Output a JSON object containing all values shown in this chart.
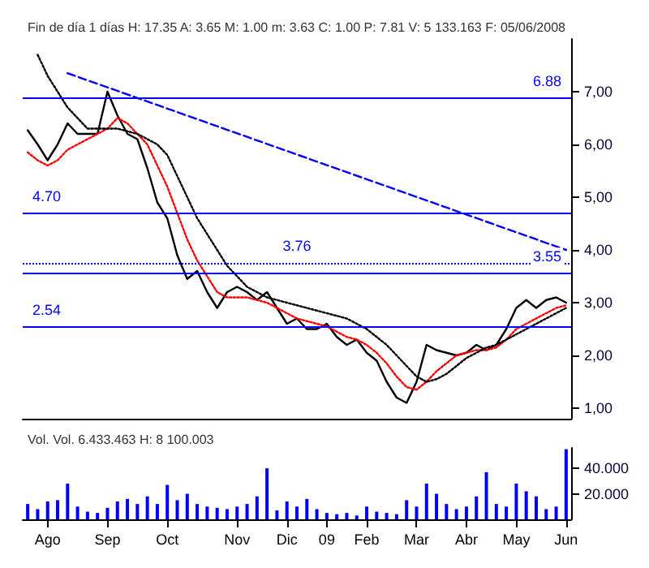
{
  "chart_data": [
    {
      "type": "line",
      "subtitle": "Fin de día 1 días H: 17.35 A: 3.65 M: 1.00 m: 3.63 C: 1.00 P: 7.81 V: 5 133.163 F: 05/06/2008",
      "categories": [
        null,
        null,
        null,
        null,
        null,
        null,
        null,
        null,
        null,
        null,
        null,
        null,
        null,
        null,
        null,
        null,
        null,
        null,
        null,
        null,
        null,
        null,
        null,
        null,
        null,
        null,
        null,
        null,
        null,
        null,
        null,
        null,
        null,
        null,
        null,
        null,
        null,
        null,
        null,
        null,
        null,
        null,
        null,
        null,
        null,
        null,
        null,
        null,
        null,
        null,
        null,
        null,
        null,
        null,
        null
      ],
      "series": [
        {
          "color": "#000000",
          "line_style": "solid",
          "values": [
            6.27,
            6.0,
            5.7,
            6.0,
            6.4,
            6.2,
            6.2,
            6.2,
            7.0,
            6.55,
            6.2,
            6.1,
            5.55,
            4.9,
            4.6,
            3.9,
            3.45,
            3.6,
            3.2,
            2.9,
            3.2,
            3.3,
            3.2,
            3.05,
            3.2,
            2.9,
            2.6,
            2.7,
            2.5,
            2.5,
            2.6,
            2.35,
            2.2,
            2.3,
            2.05,
            1.9,
            1.5,
            1.2,
            1.1,
            1.5,
            2.2,
            2.1,
            2.05,
            2.0,
            2.05,
            2.2,
            2.1,
            2.2,
            2.5,
            2.9,
            3.05,
            2.9,
            3.05,
            3.1,
            3.0
          ]
        },
        {
          "color": "#ff0000",
          "line_style": "dotted",
          "values": [
            5.85,
            5.7,
            5.6,
            5.7,
            5.9,
            6.0,
            6.1,
            6.2,
            6.3,
            6.5,
            6.4,
            6.2,
            6.0,
            5.6,
            5.2,
            4.7,
            4.2,
            3.8,
            3.5,
            3.2,
            3.1,
            3.1,
            3.1,
            3.05,
            3.0,
            2.9,
            2.8,
            2.7,
            2.65,
            2.6,
            2.55,
            2.45,
            2.35,
            2.3,
            2.2,
            2.05,
            1.85,
            1.6,
            1.4,
            1.35,
            1.5,
            1.7,
            1.85,
            2.0,
            2.05,
            2.1,
            2.1,
            2.15,
            2.3,
            2.5,
            2.6,
            2.7,
            2.8,
            2.9,
            2.95
          ]
        },
        {
          "color": "#000000",
          "line_style": "dotted",
          "values": [
            null,
            7.7,
            7.3,
            7.0,
            6.7,
            6.5,
            6.3,
            6.3,
            6.3,
            6.3,
            6.25,
            6.2,
            6.1,
            6.0,
            5.8,
            5.4,
            5.0,
            4.6,
            4.3,
            4.0,
            3.7,
            3.5,
            3.3,
            3.2,
            3.1,
            3.05,
            3.0,
            2.95,
            2.9,
            2.85,
            2.8,
            2.75,
            2.7,
            2.6,
            2.5,
            2.35,
            2.2,
            2.0,
            1.8,
            1.6,
            1.5,
            1.55,
            1.65,
            1.8,
            1.95,
            2.05,
            2.15,
            2.2,
            2.3,
            2.4,
            2.5,
            2.6,
            2.7,
            2.8,
            2.9
          ]
        },
        {
          "color": "#0000ff",
          "line_style": "dashed",
          "values": [
            null,
            null,
            null,
            null,
            7.35,
            null,
            null,
            null,
            null,
            null,
            null,
            null,
            null,
            null,
            null,
            null,
            null,
            null,
            null,
            null,
            null,
            null,
            null,
            null,
            null,
            null,
            null,
            null,
            null,
            null,
            null,
            null,
            null,
            null,
            null,
            null,
            null,
            null,
            null,
            null,
            null,
            null,
            null,
            null,
            null,
            null,
            null,
            null,
            null,
            null,
            null,
            null,
            null,
            null,
            4.0
          ]
        }
      ],
      "ylim": [
        0.8,
        8.0
      ],
      "yticks": [
        {
          "value": 1,
          "label": "1,00"
        },
        {
          "value": 2,
          "label": "2,00"
        },
        {
          "value": 3,
          "label": "3,00"
        },
        {
          "value": 4,
          "label": "4,00"
        },
        {
          "value": 5,
          "label": "5,00"
        },
        {
          "value": 6,
          "label": "6,00"
        },
        {
          "value": 7,
          "label": "7,00"
        }
      ],
      "ref_lines": [
        {
          "axis": "y",
          "value": 6.88,
          "label": "6.88",
          "color": "#0000ff",
          "line_style": "solid"
        },
        {
          "axis": "y",
          "value": 4.7,
          "label": "4.70",
          "color": "#0000ff",
          "line_style": "solid"
        },
        {
          "axis": "y",
          "value": 3.76,
          "label": "3.76",
          "color": "#0000ff",
          "line_style": "dotted"
        },
        {
          "axis": "y",
          "value": 3.55,
          "label": "3.55",
          "color": "#0000ff",
          "line_style": "solid"
        },
        {
          "axis": "y",
          "value": 2.54,
          "label": "2.54",
          "color": "#0000ff",
          "line_style": "solid"
        }
      ],
      "tick_labels": "y",
      "grid": false
    },
    {
      "type": "bar",
      "subtitle": "Vol. Vol. 6.433.463 H: 8 100.003",
      "categories": [
        null,
        null,
        "Ago",
        null,
        null,
        null,
        null,
        null,
        "Sep",
        null,
        null,
        null,
        null,
        null,
        "Oct",
        null,
        null,
        null,
        null,
        null,
        null,
        "Nov",
        null,
        null,
        null,
        null,
        "Dic",
        null,
        null,
        null,
        "09",
        null,
        null,
        null,
        "Feb",
        null,
        null,
        null,
        null,
        "Mar",
        null,
        null,
        null,
        null,
        "Abr",
        null,
        null,
        null,
        null,
        "May",
        null,
        null,
        null,
        null,
        "Jun"
      ],
      "series": [
        {
          "color": "#0000ff",
          "values": [
            12000,
            8000,
            14000,
            15000,
            28000,
            10000,
            6000,
            5000,
            9000,
            14000,
            16000,
            12000,
            18000,
            12000,
            27000,
            15000,
            20000,
            12000,
            10000,
            9000,
            8000,
            10000,
            12000,
            18000,
            40000,
            7000,
            14000,
            10000,
            16000,
            8000,
            5000,
            4000,
            5000,
            3000,
            10000,
            6000,
            5000,
            4000,
            15000,
            10000,
            28000,
            20000,
            12000,
            8000,
            10000,
            18000,
            37000,
            12000,
            10000,
            28000,
            22000,
            18000,
            8000,
            10000,
            55000
          ]
        }
      ],
      "ylim": [
        0,
        56000
      ],
      "yticks": [
        {
          "value": 20000,
          "label": "20.000"
        },
        {
          "value": 40000,
          "label": "40.000"
        }
      ],
      "grid": false
    }
  ]
}
